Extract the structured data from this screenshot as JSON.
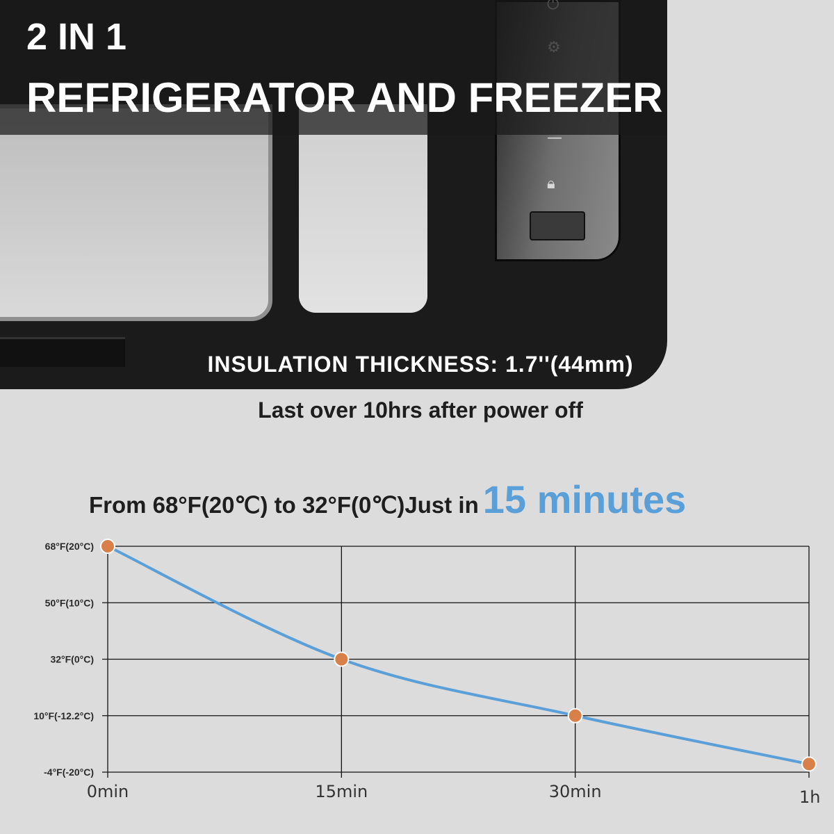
{
  "banner": {
    "line1": "2 IN 1",
    "line2": "REFRIGERATOR AND FREEZER"
  },
  "insulation": "INSULATION THICKNESS: 1.7''(44mm)",
  "retention": "Last over 10hrs after power off",
  "headline": {
    "prefix": "From 68°F(20℃) to 32°F(0℃)Just in",
    "highlight": "15 minutes"
  },
  "panel_icons": [
    "power-icon",
    "gear-icon",
    "minus-icon",
    "lock-icon"
  ],
  "colors": {
    "line": "#5a9fd8",
    "marker": "#d9804a",
    "highlight": "#5a9fd8",
    "background": "#dcdcdc"
  },
  "chart_data": {
    "type": "line",
    "categories": [
      "0min",
      "15min",
      "30min",
      "1h"
    ],
    "y_ticks": [
      {
        "value": 68,
        "label": "68°F(20°C)"
      },
      {
        "value": 50,
        "label": "50°F(10°C)"
      },
      {
        "value": 32,
        "label": "32°F(0°C)"
      },
      {
        "value": 10,
        "label": "10°F(-12.2°C)"
      },
      {
        "value": -4,
        "label": "-4°F(-20°C)"
      }
    ],
    "series": [
      {
        "values": [
          68,
          32,
          10,
          -2
        ]
      }
    ],
    "ylim": [
      -4,
      68
    ],
    "grid": true,
    "y_unit": "°F"
  }
}
